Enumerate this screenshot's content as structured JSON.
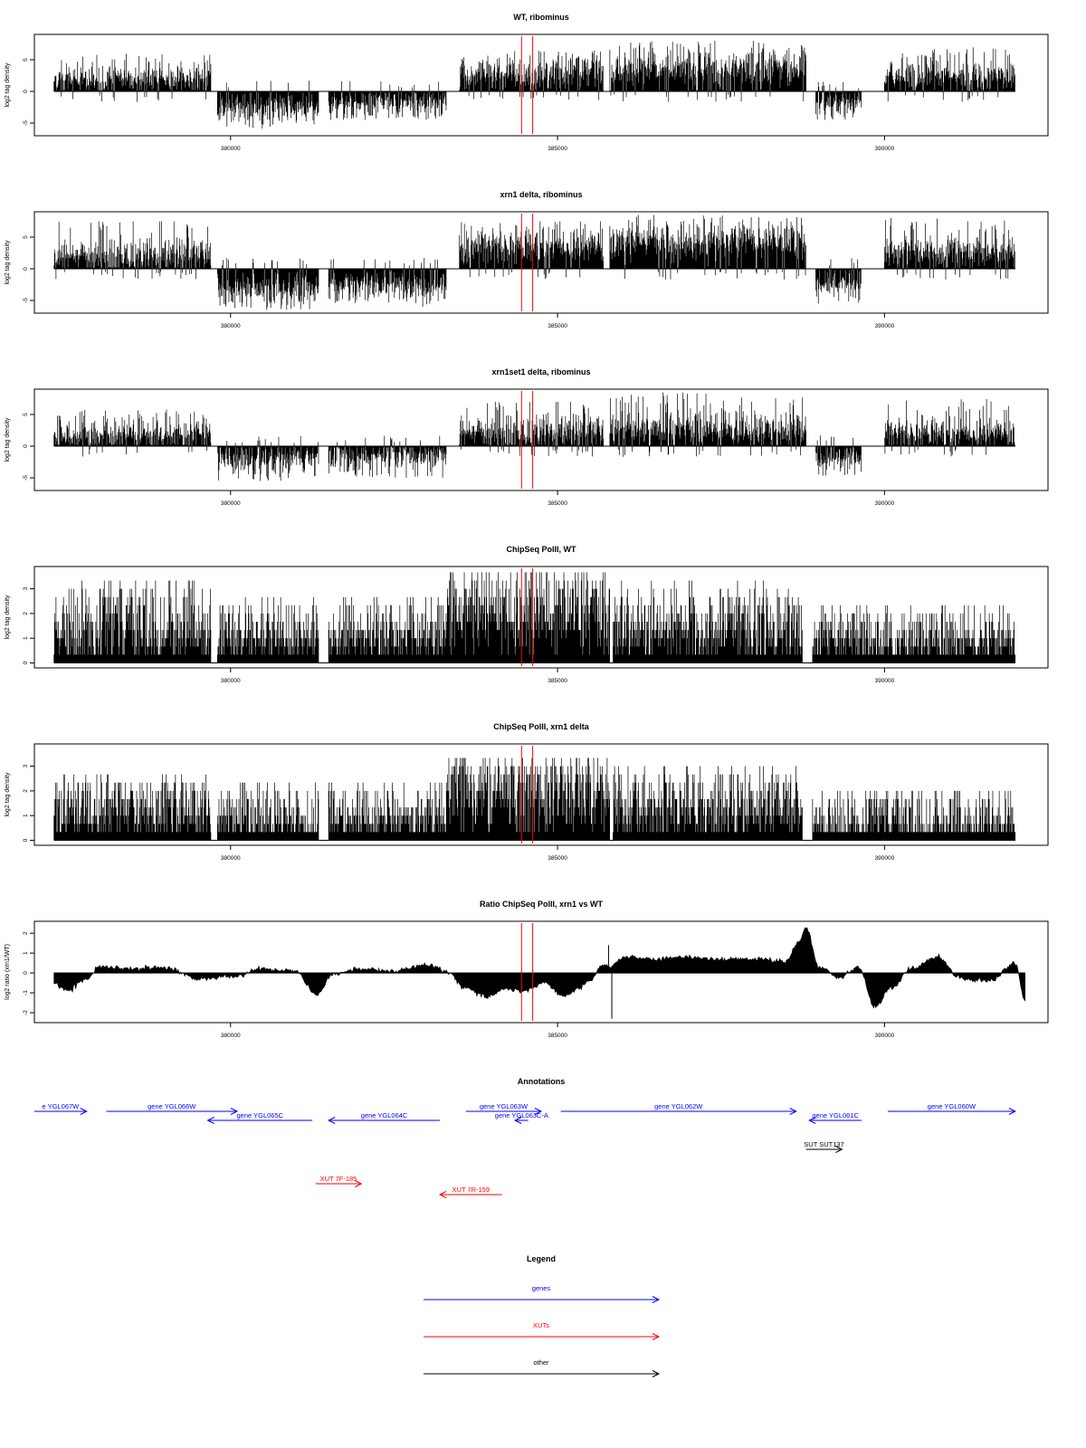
{
  "chart_data": [
    {
      "type": "bar",
      "title": "WT, ribominus",
      "ylabel": "log2 tag density",
      "xlim": [
        377000,
        392500
      ],
      "ylim": [
        -7,
        9
      ],
      "xticks": [
        380000,
        385000,
        390000
      ],
      "yticks": [
        -5,
        0,
        5
      ],
      "grid": false,
      "segments": [
        {
          "x": [
            377300,
            379700
          ],
          "level": 2.0,
          "spread": 1.2,
          "peak": 6.0,
          "sign": 1
        },
        {
          "x": [
            379800,
            381350
          ],
          "level": -2.5,
          "spread": 1.3,
          "peak": -6.0,
          "sign": -1
        },
        {
          "x": [
            381500,
            383300
          ],
          "level": -1.8,
          "spread": 1.2,
          "peak": -4.5,
          "sign": -1
        },
        {
          "x": [
            383500,
            385700
          ],
          "level": 2.8,
          "spread": 1.4,
          "peak": 6.5,
          "sign": 1
        },
        {
          "x": [
            385800,
            388800
          ],
          "level": 3.5,
          "spread": 1.6,
          "peak": 8.0,
          "sign": 1
        },
        {
          "x": [
            388950,
            389650
          ],
          "level": -1.8,
          "spread": 1.0,
          "peak": -4.5,
          "sign": -1
        },
        {
          "x": [
            390000,
            392000
          ],
          "level": 2.5,
          "spread": 1.3,
          "peak": 7.0,
          "sign": 1
        }
      ],
      "markers": [
        384450,
        384620
      ],
      "marker_color": "#ff0000"
    },
    {
      "type": "bar",
      "title": "xrn1 delta, ribominus",
      "ylabel": "log2 tag density",
      "xlim": [
        377000,
        392500
      ],
      "ylim": [
        -7,
        9
      ],
      "xticks": [
        380000,
        385000,
        390000
      ],
      "yticks": [
        -5,
        0,
        5
      ],
      "grid": false,
      "segments": [
        {
          "x": [
            377300,
            379700
          ],
          "level": 2.2,
          "spread": 1.4,
          "peak": 7.5,
          "sign": 1
        },
        {
          "x": [
            379800,
            381350
          ],
          "level": -3.2,
          "spread": 1.4,
          "peak": -6.5,
          "sign": -1
        },
        {
          "x": [
            381500,
            383300
          ],
          "level": -2.8,
          "spread": 1.3,
          "peak": -6.0,
          "sign": -1
        },
        {
          "x": [
            383500,
            385700
          ],
          "level": 3.5,
          "spread": 1.5,
          "peak": 7.5,
          "sign": 1
        },
        {
          "x": [
            385800,
            388800
          ],
          "level": 4.3,
          "spread": 1.6,
          "peak": 8.5,
          "sign": 1
        },
        {
          "x": [
            388950,
            389650
          ],
          "level": -2.2,
          "spread": 1.1,
          "peak": -5.5,
          "sign": -1
        },
        {
          "x": [
            390000,
            392000
          ],
          "level": 2.8,
          "spread": 1.4,
          "peak": 8.0,
          "sign": 1
        }
      ],
      "markers": [
        384450,
        384620
      ],
      "marker_color": "#ff0000"
    },
    {
      "type": "bar",
      "title": "xrn1set1 delta, ribominus",
      "ylabel": "log2 tag density",
      "xlim": [
        377000,
        392500
      ],
      "ylim": [
        -7,
        9
      ],
      "xticks": [
        380000,
        385000,
        390000
      ],
      "yticks": [
        -5,
        0,
        5
      ],
      "grid": false,
      "segments": [
        {
          "x": [
            377300,
            379700
          ],
          "level": 1.6,
          "spread": 1.3,
          "peak": 6.0,
          "sign": 1
        },
        {
          "x": [
            379800,
            381350
          ],
          "level": -2.0,
          "spread": 1.3,
          "peak": -5.5,
          "sign": -1
        },
        {
          "x": [
            381500,
            383300
          ],
          "level": -1.6,
          "spread": 1.2,
          "peak": -5.0,
          "sign": -1
        },
        {
          "x": [
            383500,
            385700
          ],
          "level": 2.4,
          "spread": 1.4,
          "peak": 7.0,
          "sign": 1
        },
        {
          "x": [
            385800,
            388800
          ],
          "level": 2.8,
          "spread": 1.6,
          "peak": 8.5,
          "sign": 1
        },
        {
          "x": [
            388950,
            389650
          ],
          "level": -2.0,
          "spread": 1.0,
          "peak": -5.0,
          "sign": -1
        },
        {
          "x": [
            390000,
            392000
          ],
          "level": 2.0,
          "spread": 1.3,
          "peak": 7.5,
          "sign": 1
        }
      ],
      "markers": [
        384450,
        384620
      ],
      "marker_color": "#ff0000"
    },
    {
      "type": "bar",
      "title": "ChipSeq PolII, WT",
      "ylabel": "log2 tag density",
      "xlim": [
        377000,
        392500
      ],
      "ylim": [
        -0.2,
        3.9
      ],
      "xticks": [
        380000,
        385000,
        390000
      ],
      "yticks": [
        0,
        1,
        2,
        3
      ],
      "grid": false,
      "segments": [
        {
          "x": [
            377300,
            379700
          ],
          "level": 1.3,
          "spread": 0.8,
          "peak": 3.4,
          "sign": 1
        },
        {
          "x": [
            379800,
            381350
          ],
          "level": 1.0,
          "spread": 0.6,
          "peak": 2.6,
          "sign": 1
        },
        {
          "x": [
            381500,
            383300
          ],
          "level": 1.0,
          "spread": 0.6,
          "peak": 2.8,
          "sign": 1
        },
        {
          "x": [
            383300,
            385800
          ],
          "level": 2.0,
          "spread": 0.9,
          "peak": 3.8,
          "sign": 1
        },
        {
          "x": [
            385850,
            388750
          ],
          "level": 1.3,
          "spread": 0.8,
          "peak": 3.3,
          "sign": 1
        },
        {
          "x": [
            388900,
            392000
          ],
          "level": 0.8,
          "spread": 0.6,
          "peak": 2.4,
          "sign": 1
        }
      ],
      "markers": [
        384450,
        384620
      ],
      "marker_color": "#ff0000"
    },
    {
      "type": "bar",
      "title": "ChipSeq PolII, xrn1 delta",
      "ylabel": "log2 tag density",
      "xlim": [
        377000,
        392500
      ],
      "ylim": [
        -0.2,
        3.9
      ],
      "xticks": [
        380000,
        385000,
        390000
      ],
      "yticks": [
        0,
        1,
        2,
        3
      ],
      "grid": false,
      "segments": [
        {
          "x": [
            377300,
            379700
          ],
          "level": 1.2,
          "spread": 0.8,
          "peak": 2.6,
          "sign": 1
        },
        {
          "x": [
            379800,
            381350
          ],
          "level": 0.7,
          "spread": 0.6,
          "peak": 2.3,
          "sign": 1
        },
        {
          "x": [
            381500,
            383300
          ],
          "level": 0.8,
          "spread": 0.6,
          "peak": 2.4,
          "sign": 1
        },
        {
          "x": [
            383300,
            385800
          ],
          "level": 1.8,
          "spread": 0.9,
          "peak": 3.4,
          "sign": 1
        },
        {
          "x": [
            385850,
            388750
          ],
          "level": 1.2,
          "spread": 0.8,
          "peak": 2.9,
          "sign": 1
        },
        {
          "x": [
            388900,
            392000
          ],
          "level": 0.6,
          "spread": 0.6,
          "peak": 2.1,
          "sign": 1
        }
      ],
      "markers": [
        384450,
        384620
      ],
      "marker_color": "#ff0000"
    },
    {
      "type": "area",
      "title": "Ratio ChipSeq PolII, xrn1 vs WT",
      "ylabel": "log2 ratio (xrn1/WT)",
      "xlim": [
        377000,
        392500
      ],
      "ylim": [
        -2.5,
        2.6
      ],
      "xticks": [
        380000,
        385000,
        390000
      ],
      "yticks": [
        -2,
        -1,
        0,
        1,
        2
      ],
      "grid": false,
      "x": [
        377300,
        377500,
        377800,
        378000,
        378500,
        379000,
        379500,
        380000,
        380500,
        381000,
        381300,
        381600,
        382000,
        382500,
        383000,
        383300,
        383600,
        383900,
        384200,
        384500,
        384800,
        385100,
        385300,
        385500,
        385700,
        385800,
        386000,
        386500,
        387000,
        387500,
        388000,
        388500,
        388700,
        388800,
        389000,
        389300,
        389600,
        389850,
        390100,
        390400,
        390800,
        391200,
        391600,
        392000,
        392150
      ],
      "y": [
        -0.5,
        -0.9,
        -0.3,
        0.3,
        0.2,
        0.3,
        -0.3,
        -0.2,
        0.2,
        0.1,
        -1.1,
        0.0,
        0.2,
        0.1,
        0.4,
        0.1,
        -0.8,
        -1.2,
        -0.8,
        -0.9,
        -0.5,
        -1.2,
        -0.8,
        -0.4,
        0.4,
        0.3,
        0.8,
        0.7,
        0.8,
        0.7,
        0.7,
        0.6,
        1.6,
        2.3,
        0.3,
        -0.2,
        0.3,
        -1.7,
        -0.8,
        0.2,
        0.8,
        -0.3,
        -0.4,
        0.5,
        -1.4
      ],
      "spikes": [
        {
          "x": 385780,
          "y": 1.4
        },
        {
          "x": 385830,
          "y": -2.3
        }
      ],
      "markers": [
        384450,
        384620
      ],
      "marker_color": "#ff0000"
    }
  ],
  "annotations": {
    "title": "Annotations",
    "xlim": [
      377000,
      392500
    ],
    "genes_color": "#0000ff",
    "xuts_color": "#ff0000",
    "other_color": "#000000",
    "features": [
      {
        "label": "e YGL067W",
        "start": 377000,
        "end": 377800,
        "strand": "+",
        "kind": "gene",
        "row": 0
      },
      {
        "label": "gene YGL066W",
        "start": 378100,
        "end": 380100,
        "strand": "+",
        "kind": "gene",
        "row": 0
      },
      {
        "label": "gene YGL065C",
        "start": 379650,
        "end": 381250,
        "strand": "-",
        "kind": "gene",
        "row": 1
      },
      {
        "label": "gene YGL064C",
        "start": 381500,
        "end": 383200,
        "strand": "-",
        "kind": "gene",
        "row": 1
      },
      {
        "label": "gene YGL063W",
        "start": 383600,
        "end": 384750,
        "strand": "+",
        "kind": "gene",
        "row": 0
      },
      {
        "label": "gene YGL063C-A",
        "start": 384350,
        "end": 384550,
        "strand": "-",
        "kind": "gene",
        "row": 1
      },
      {
        "label": "gene YGL062W",
        "start": 385050,
        "end": 388650,
        "strand": "+",
        "kind": "gene",
        "row": 0
      },
      {
        "label": "gene YGL061C",
        "start": 388850,
        "end": 389650,
        "strand": "-",
        "kind": "gene",
        "row": 1
      },
      {
        "label": "gene YGL060W",
        "start": 390050,
        "end": 392000,
        "strand": "+",
        "kind": "gene",
        "row": 0
      },
      {
        "label": "SUT SUT137",
        "start": 388800,
        "end": 389350,
        "strand": "+",
        "kind": "other",
        "row": 2
      },
      {
        "label": "XUT 7F-185",
        "start": 381300,
        "end": 382000,
        "strand": "+",
        "kind": "xut",
        "row": 3
      },
      {
        "label": "XUT 7R-159",
        "start": 383200,
        "end": 384150,
        "strand": "-",
        "kind": "xut",
        "row": 4
      }
    ]
  },
  "legend": {
    "title": "Legend",
    "items": [
      {
        "label": "genes",
        "color": "#0000ff"
      },
      {
        "label": "XUTs",
        "color": "#ff0000"
      },
      {
        "label": "other",
        "color": "#000000"
      }
    ]
  }
}
